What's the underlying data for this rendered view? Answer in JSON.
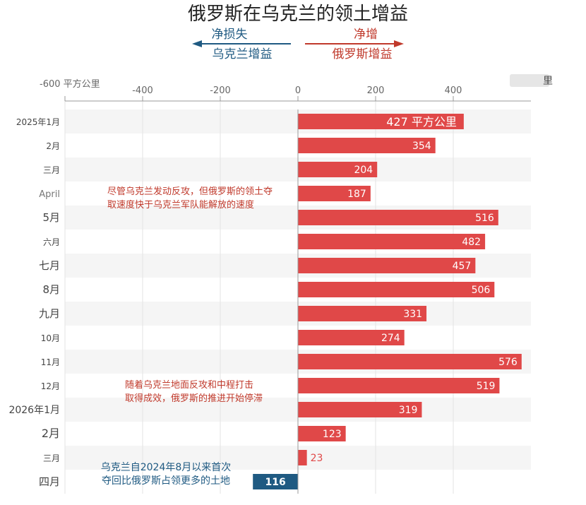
{
  "header": {
    "title": "俄罗斯在乌克兰的领土增益",
    "left_top": "净损失",
    "left_bottom": "乌克兰增益",
    "right_top": "净增",
    "right_bottom": "俄罗斯增益",
    "right_edge_label": "里"
  },
  "chart_data": {
    "type": "bar",
    "orientation": "horizontal",
    "title": "俄罗斯在乌克兰的领土增益",
    "xlabel": "",
    "ylabel": "",
    "x_ticks": [
      "-600 平方公里",
      "-400",
      "-200",
      "0",
      "200",
      "400"
    ],
    "xlim": [
      -600,
      600
    ],
    "categories": [
      "2025年1月",
      "2月",
      "三月",
      "April",
      "5月",
      "六月",
      "七月",
      "8月",
      "九月",
      "10月",
      "11月",
      "12月",
      "2026年1月",
      "2月",
      "三月",
      "四月"
    ],
    "values": [
      427,
      354,
      204,
      187,
      516,
      482,
      457,
      506,
      331,
      274,
      576,
      519,
      319,
      123,
      23,
      -116
    ],
    "value_labels": [
      "427 平方公里",
      "354",
      "204",
      "187",
      "516",
      "482",
      "457",
      "506",
      "331",
      "274",
      "576",
      "519",
      "319",
      "123",
      "23",
      "116"
    ],
    "colors": {
      "positive": "#e04848",
      "negative": "#1f5a82",
      "stripe": "#f5f5f5",
      "axis": "#9a9a9a"
    },
    "grid": true,
    "annotations": [
      {
        "lines": [
          "尽管乌克兰发动反攻，但俄罗斯的领土夺",
          "取速度快于乌克兰军队能解放的速度"
        ],
        "near": "April"
      },
      {
        "lines": [
          "随着乌克兰地面反攻和中程打击",
          "取得成效，俄罗斯的推进开始停滞"
        ],
        "near": "12月"
      },
      {
        "lines": [
          "乌克兰自2024年8月以来首次",
          "夺回比俄罗斯占领更多的土地"
        ],
        "near": "四月"
      }
    ]
  }
}
